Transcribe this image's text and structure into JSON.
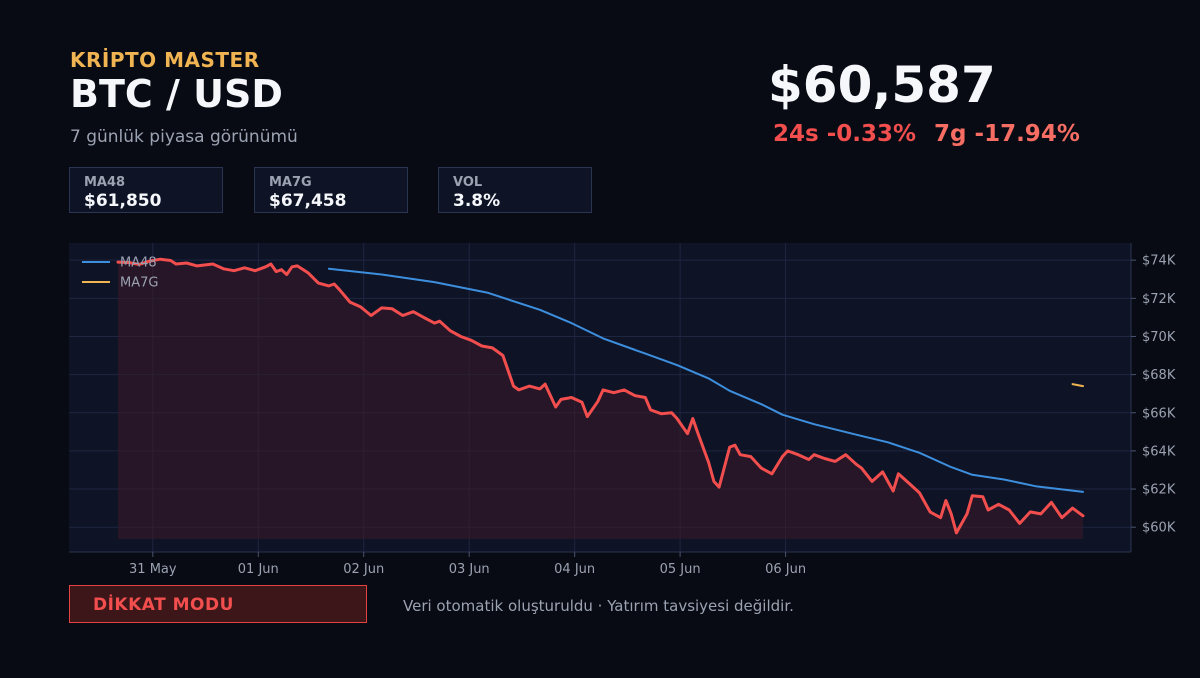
{
  "header": {
    "brand": "KRİPTO MASTER",
    "pair": "BTC / USD",
    "subtitle": "7 günlük piyasa görünümü"
  },
  "price": {
    "current": "$60,587",
    "change_24h": "24s -0.33%",
    "change_7d": "7g -17.94%"
  },
  "stats": [
    {
      "label": "MA48",
      "value": "$61,850"
    },
    {
      "label": "MA7G",
      "value": "$67,458"
    },
    {
      "label": "VOL",
      "value": "3.8%"
    }
  ],
  "chart_data": {
    "type": "line",
    "ylim": [
      58700,
      74900
    ],
    "grid": true,
    "legend_position": "top-left",
    "y_ticks": [
      60000,
      62000,
      64000,
      66000,
      68000,
      70000,
      72000,
      74000
    ],
    "y_tick_labels": [
      "$60K",
      "$62K",
      "$64K",
      "$66K",
      "$68K",
      "$70K",
      "$72K",
      "$74K"
    ],
    "x_ticks": [
      0.33,
      1.33,
      2.33,
      3.33,
      4.33,
      5.33,
      6.33
    ],
    "x_tick_labels": [
      "31 May",
      "01 Jun",
      "02 Jun",
      "03 Jun",
      "04 Jun",
      "05 Jun",
      "06 Jun"
    ],
    "series": [
      {
        "name": "",
        "color": "#f24e4e",
        "fill": true,
        "points": [
          [
            0,
            73900
          ],
          [
            0.1,
            73880
          ],
          [
            0.2,
            73780
          ],
          [
            0.3,
            73950
          ],
          [
            0.4,
            74050
          ],
          [
            0.5,
            73980
          ],
          [
            0.55,
            73800
          ],
          [
            0.65,
            73850
          ],
          [
            0.75,
            73700
          ],
          [
            0.9,
            73800
          ],
          [
            1.0,
            73550
          ],
          [
            1.1,
            73450
          ],
          [
            1.2,
            73600
          ],
          [
            1.3,
            73450
          ],
          [
            1.4,
            73650
          ],
          [
            1.45,
            73800
          ],
          [
            1.5,
            73400
          ],
          [
            1.55,
            73500
          ],
          [
            1.6,
            73250
          ],
          [
            1.65,
            73650
          ],
          [
            1.7,
            73700
          ],
          [
            1.8,
            73350
          ],
          [
            1.9,
            72800
          ],
          [
            2.0,
            72650
          ],
          [
            2.05,
            72750
          ],
          [
            2.1,
            72450
          ],
          [
            2.2,
            71800
          ],
          [
            2.3,
            71550
          ],
          [
            2.4,
            71100
          ],
          [
            2.5,
            71500
          ],
          [
            2.6,
            71450
          ],
          [
            2.7,
            71100
          ],
          [
            2.8,
            71300
          ],
          [
            2.9,
            71000
          ],
          [
            3.0,
            70700
          ],
          [
            3.05,
            70800
          ],
          [
            3.15,
            70300
          ],
          [
            3.25,
            70000
          ],
          [
            3.35,
            69800
          ],
          [
            3.45,
            69500
          ],
          [
            3.55,
            69400
          ],
          [
            3.65,
            69000
          ],
          [
            3.75,
            67400
          ],
          [
            3.8,
            67200
          ],
          [
            3.9,
            67400
          ],
          [
            4.0,
            67250
          ],
          [
            4.05,
            67500
          ],
          [
            4.15,
            66300
          ],
          [
            4.2,
            66700
          ],
          [
            4.3,
            66800
          ],
          [
            4.4,
            66550
          ],
          [
            4.45,
            65800
          ],
          [
            4.55,
            66600
          ],
          [
            4.6,
            67200
          ],
          [
            4.7,
            67050
          ],
          [
            4.8,
            67200
          ],
          [
            4.9,
            66900
          ],
          [
            5.0,
            66800
          ],
          [
            5.05,
            66150
          ],
          [
            5.15,
            65950
          ],
          [
            5.25,
            66000
          ],
          [
            5.3,
            65700
          ],
          [
            5.4,
            64900
          ],
          [
            5.45,
            65700
          ],
          [
            5.5,
            64900
          ],
          [
            5.6,
            63400
          ],
          [
            5.65,
            62400
          ],
          [
            5.7,
            62100
          ],
          [
            5.8,
            64200
          ],
          [
            5.85,
            64300
          ],
          [
            5.9,
            63800
          ],
          [
            6.0,
            63700
          ],
          [
            6.1,
            63100
          ],
          [
            6.2,
            62800
          ],
          [
            6.3,
            63700
          ],
          [
            6.35,
            64000
          ],
          [
            6.45,
            63800
          ],
          [
            6.55,
            63550
          ],
          [
            6.6,
            63800
          ],
          [
            6.7,
            63600
          ],
          [
            6.8,
            63450
          ],
          [
            6.9,
            63800
          ],
          [
            7.0,
            63300
          ],
          [
            7.05,
            63100
          ],
          [
            7.15,
            62400
          ],
          [
            7.25,
            62900
          ],
          [
            7.35,
            61900
          ],
          [
            7.4,
            62800
          ],
          [
            7.5,
            62300
          ],
          [
            7.6,
            61800
          ],
          [
            7.7,
            60800
          ],
          [
            7.8,
            60500
          ],
          [
            7.85,
            61400
          ],
          [
            7.9,
            60700
          ],
          [
            7.95,
            59700
          ],
          [
            8.05,
            60700
          ],
          [
            8.1,
            61650
          ],
          [
            8.2,
            61600
          ],
          [
            8.25,
            60900
          ],
          [
            8.35,
            61200
          ],
          [
            8.45,
            60900
          ],
          [
            8.55,
            60200
          ],
          [
            8.65,
            60800
          ],
          [
            8.75,
            60700
          ],
          [
            8.85,
            61300
          ],
          [
            8.95,
            60500
          ],
          [
            9.05,
            61000
          ],
          [
            9.15,
            60600
          ]
        ]
      },
      {
        "name": "MA48",
        "color": "#3d8fdd",
        "fill": false,
        "points": [
          [
            2.0,
            73550
          ],
          [
            2.5,
            73250
          ],
          [
            3.0,
            72850
          ],
          [
            3.5,
            72300
          ],
          [
            4.0,
            71400
          ],
          [
            4.3,
            70700
          ],
          [
            4.6,
            69900
          ],
          [
            5.0,
            69100
          ],
          [
            5.3,
            68500
          ],
          [
            5.6,
            67800
          ],
          [
            5.8,
            67150
          ],
          [
            6.1,
            66450
          ],
          [
            6.3,
            65900
          ],
          [
            6.6,
            65400
          ],
          [
            7.0,
            64850
          ],
          [
            7.3,
            64450
          ],
          [
            7.6,
            63900
          ],
          [
            7.9,
            63150
          ],
          [
            8.1,
            62750
          ],
          [
            8.4,
            62500
          ],
          [
            8.7,
            62150
          ],
          [
            9.15,
            61850
          ]
        ]
      },
      {
        "name": "MA7G",
        "color": "#f0b452",
        "fill": false,
        "points": [
          [
            9.05,
            67500
          ],
          [
            9.15,
            67400
          ]
        ]
      }
    ]
  },
  "footer": {
    "alert_label": "DİKKAT MODU",
    "disclaimer": "Veri otomatik oluşturuldu · Yatırım tavsiyesi değildir."
  }
}
